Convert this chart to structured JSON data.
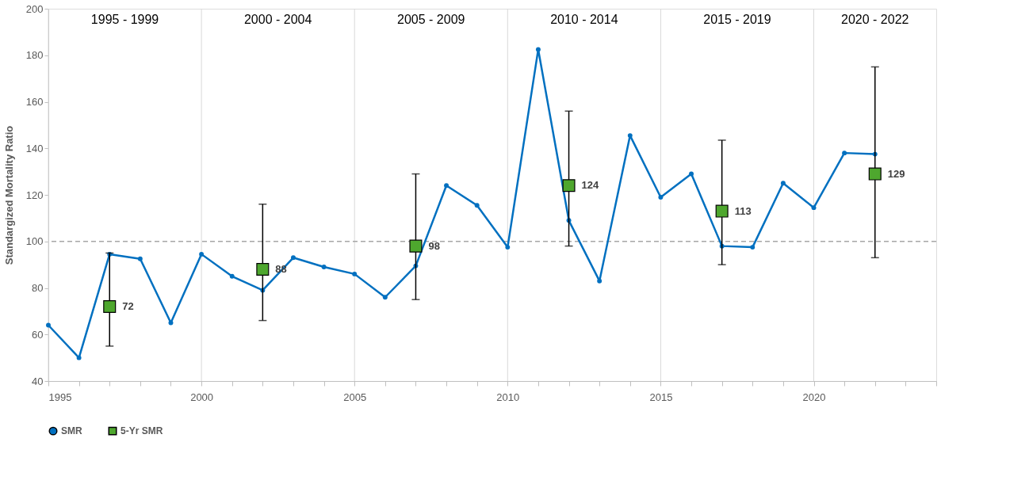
{
  "chart_data": {
    "type": "line",
    "ylabel": "Standargized Mortality Ratio",
    "xlim": [
      1995,
      2024
    ],
    "ylim": [
      40,
      200
    ],
    "yticks": [
      40,
      60,
      80,
      100,
      120,
      140,
      160,
      180,
      200
    ],
    "xticks": [
      1995,
      {
        "value": 1996,
        "label": null
      },
      {
        "value": 1997,
        "label": null
      },
      {
        "value": 1998,
        "label": null
      },
      {
        "value": 1999,
        "label": null
      },
      2000,
      {
        "value": 2001,
        "label": null
      },
      {
        "value": 2002,
        "label": null
      },
      {
        "value": 2003,
        "label": null
      },
      {
        "value": 2004,
        "label": null
      },
      2005,
      {
        "value": 2006,
        "label": null
      },
      {
        "value": 2007,
        "label": null
      },
      {
        "value": 2008,
        "label": null
      },
      {
        "value": 2009,
        "label": null
      },
      2010,
      {
        "value": 2011,
        "label": null
      },
      {
        "value": 2012,
        "label": null
      },
      {
        "value": 2013,
        "label": null
      },
      {
        "value": 2014,
        "label": null
      },
      2015,
      {
        "value": 2016,
        "label": null
      },
      {
        "value": 2017,
        "label": null
      },
      {
        "value": 2018,
        "label": null
      },
      {
        "value": 2019,
        "label": null
      },
      2020,
      {
        "value": 2021,
        "label": null
      },
      {
        "value": 2022,
        "label": null
      },
      {
        "value": 2023,
        "label": null
      },
      {
        "value": 2024,
        "label": null
      }
    ],
    "grid": "x",
    "legend": "bottom",
    "series": [
      {
        "name": "SMR",
        "type": "line",
        "color": "#0070c0",
        "marker": "circle",
        "line_style": "solid",
        "x": [
          1995,
          1996,
          1997,
          1998,
          1999,
          2000,
          2001,
          2002,
          2003,
          2004,
          2005,
          2006,
          2007,
          2008,
          2009,
          2010,
          2011,
          2012,
          2013,
          2014,
          2015,
          2016,
          2017,
          2018,
          2019,
          2020,
          2021,
          2022
        ],
        "values": [
          64,
          50,
          94.5,
          92.5,
          65,
          94.5,
          85,
          79,
          93,
          89,
          86,
          76,
          89.5,
          124,
          115.5,
          97.5,
          182.5,
          109,
          83,
          145.5,
          119,
          129,
          98,
          97.5,
          125,
          114.5,
          138,
          137.5
        ]
      },
      {
        "name": "5-Yr SMR",
        "type": "scatter",
        "color": "#4ea72e",
        "marker": "square",
        "x": [
          1997,
          2002,
          2007,
          2012,
          2017,
          2022
        ],
        "values": [
          72,
          88,
          98,
          124,
          113,
          129
        ],
        "value_labels": [
          "72",
          "88",
          "98",
          "124",
          "113",
          "129"
        ],
        "errors": [
          [
            55,
            95
          ],
          [
            66,
            116
          ],
          [
            75,
            129
          ],
          [
            98,
            156
          ],
          [
            90,
            143.5
          ],
          [
            93,
            175
          ]
        ]
      }
    ],
    "ref_lines": [
      {
        "axis": "y",
        "value": 100,
        "color": "#a6a6a6",
        "line_style": "dashed"
      }
    ],
    "annotations": [
      "1995 - 1999",
      "2000 - 2004",
      "2005 - 2009",
      "2010 - 2014",
      "2015 - 2019",
      "2020 - 2022"
    ]
  }
}
